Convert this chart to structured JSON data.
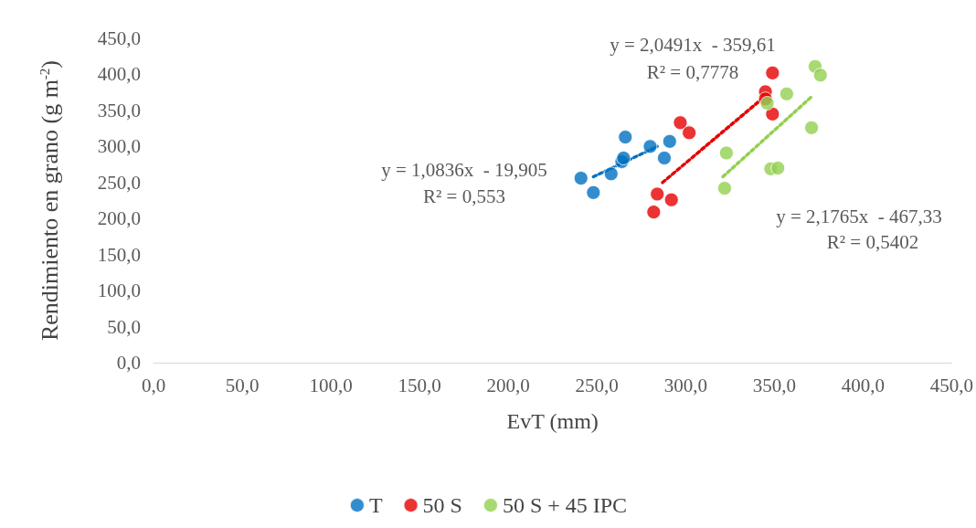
{
  "chart_data": {
    "type": "scatter",
    "xlabel": "EvT (mm)",
    "ylabel": "Rendimiento en grano (g m$^{-2}$)",
    "xlim": [
      0,
      450
    ],
    "ylim": [
      0,
      450
    ],
    "xticks": [
      {
        "value": 0,
        "label": "0,0"
      },
      {
        "value": 50,
        "label": "50,0"
      },
      {
        "value": 100,
        "label": "100,0"
      },
      {
        "value": 150,
        "label": "150,0"
      },
      {
        "value": 200,
        "label": "200,0"
      },
      {
        "value": 250,
        "label": "250,0"
      },
      {
        "value": 300,
        "label": "300,0"
      },
      {
        "value": 350,
        "label": "350,0"
      },
      {
        "value": 400,
        "label": "400,0"
      },
      {
        "value": 450,
        "label": "450,0"
      }
    ],
    "yticks": [
      {
        "value": 0,
        "label": "0,0"
      },
      {
        "value": 50,
        "label": "50,0"
      },
      {
        "value": 100,
        "label": "100,0"
      },
      {
        "value": 150,
        "label": "150,0"
      },
      {
        "value": 200,
        "label": "200,0"
      },
      {
        "value": 250,
        "label": "250,0"
      },
      {
        "value": 300,
        "label": "300,0"
      },
      {
        "value": 350,
        "label": "350,0"
      },
      {
        "value": 400,
        "label": "400,0"
      },
      {
        "value": 450,
        "label": "450,0"
      }
    ],
    "grid": false,
    "legend": "bottom",
    "marker": "circle",
    "annotations": [
      "y = 1,0836x  - 19,905",
      "R² = 0,553",
      "y = 2,0491x  - 359,61",
      "R² = 0,7778",
      "y = 2,1765x  - 467,33",
      "R² = 0,5402"
    ],
    "series": [
      {
        "name": "T",
        "color": "#0070c0",
        "x": [
          241,
          248,
          258,
          264,
          265,
          266,
          280,
          288,
          291
        ],
        "values": [
          256,
          236,
          262,
          279,
          284,
          313,
          300,
          284,
          307
        ]
      },
      {
        "name": "50 S",
        "color": "#e60000",
        "x": [
          284,
          282,
          292,
          297,
          302,
          345,
          345,
          349,
          349
        ],
        "values": [
          234,
          209,
          226,
          333,
          319,
          376,
          366,
          402,
          345
        ]
      },
      {
        "name": "50 S + 45 IPC",
        "color": "#92d050",
        "x": [
          322,
          323,
          346,
          348,
          352,
          357,
          371,
          373,
          376
        ],
        "values": [
          242,
          291,
          360,
          269,
          270,
          373,
          326,
          411,
          399
        ]
      },
      {
        "type": "line",
        "color": "#0070c0",
        "line_style": "dotted",
        "marker": "none",
        "x": [
          248,
          284
        ],
        "values": [
          258,
          300
        ]
      },
      {
        "type": "line",
        "color": "#e60000",
        "line_style": "dotted",
        "marker": "none",
        "x": [
          287,
          343
        ],
        "values": [
          250,
          366
        ]
      },
      {
        "type": "line",
        "color": "#92d050",
        "line_style": "dotted",
        "marker": "none",
        "x": [
          321,
          371
        ],
        "values": [
          258,
          369
        ]
      }
    ]
  }
}
